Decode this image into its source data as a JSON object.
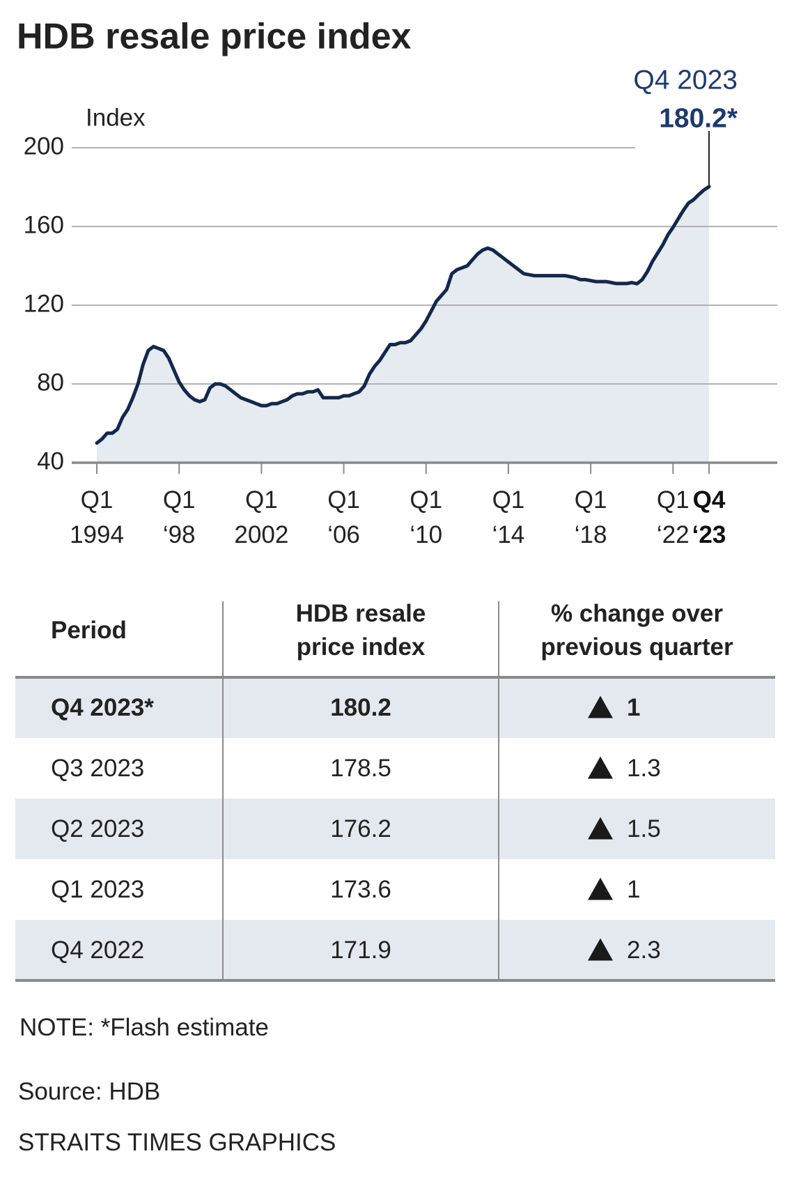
{
  "title": "HDB resale price index",
  "chart_data": {
    "type": "line",
    "y_label": "Index",
    "categories": [
      "Q1\n1994",
      null,
      null,
      null,
      null,
      null,
      null,
      null,
      null,
      null,
      null,
      null,
      null,
      null,
      null,
      null,
      "Q1\n‘98",
      null,
      null,
      null,
      null,
      null,
      null,
      null,
      null,
      null,
      null,
      null,
      null,
      null,
      null,
      null,
      "Q1\n2002",
      null,
      null,
      null,
      null,
      null,
      null,
      null,
      null,
      null,
      null,
      null,
      null,
      null,
      null,
      null,
      "Q1\n‘06",
      null,
      null,
      null,
      null,
      null,
      null,
      null,
      null,
      null,
      null,
      null,
      null,
      null,
      null,
      null,
      "Q1\n‘10",
      null,
      null,
      null,
      null,
      null,
      null,
      null,
      null,
      null,
      null,
      null,
      null,
      null,
      null,
      null,
      "Q1\n‘14",
      null,
      null,
      null,
      null,
      null,
      null,
      null,
      null,
      null,
      null,
      null,
      null,
      null,
      null,
      null,
      "Q1\n‘18",
      null,
      null,
      null,
      null,
      null,
      null,
      null,
      null,
      null,
      null,
      null,
      null,
      null,
      null,
      null,
      "Q1\n‘22",
      null,
      null,
      null,
      null,
      null,
      null,
      "Q4\n‘23"
    ],
    "series": [
      {
        "name": "HDB resale price index",
        "color": "#14284b",
        "values": [
          50,
          52,
          55,
          55,
          57,
          63,
          67,
          73,
          80,
          90,
          97,
          99,
          98,
          97,
          93,
          87,
          81,
          77,
          74,
          72,
          71,
          72,
          78,
          80,
          80,
          79,
          77,
          75,
          73,
          72,
          71,
          70,
          69,
          69,
          70,
          70,
          71,
          72,
          74,
          75,
          75,
          76,
          76,
          77,
          73,
          73,
          73,
          73,
          74,
          74,
          75,
          76,
          79,
          85,
          89,
          92,
          96,
          100,
          100,
          101,
          101,
          102,
          105,
          108,
          112,
          117,
          122,
          125,
          128,
          136,
          138,
          139,
          140,
          143,
          146,
          148,
          149,
          148,
          146,
          144,
          142,
          140,
          138,
          136,
          135.5,
          135,
          135,
          135,
          135,
          135,
          135,
          135,
          134.5,
          134,
          133,
          133,
          132.5,
          132,
          132,
          132,
          131.5,
          131,
          131,
          131,
          131.5,
          130.9,
          133,
          137,
          142.2,
          146.4,
          150.6,
          155.7,
          159.5,
          163.9,
          168.1,
          171.9,
          173.6,
          176.2,
          178.5,
          180.2
        ]
      }
    ],
    "ylim": [
      40,
      200
    ],
    "yticks": [
      40,
      80,
      120,
      160,
      200
    ],
    "grid": true,
    "area_color": "#e6ebf1",
    "annotations": [
      "Q4 2023",
      "180.2*"
    ]
  },
  "table": {
    "header": [
      "Period",
      "HDB resale\nprice index",
      "% change over\nprevious quarter"
    ],
    "rows": [
      [
        "Q4 2023*",
        "180.2",
        "1"
      ],
      [
        "Q3 2023",
        "178.5",
        "1.3"
      ],
      [
        "Q2 2023",
        "176.2",
        "1.5"
      ],
      [
        "Q1 2023",
        "173.6",
        "1"
      ],
      [
        "Q4 2022",
        "171.9",
        "2.3"
      ]
    ]
  },
  "note": "NOTE: *Flash estimate",
  "source": "Source: HDB",
  "credit": "STRAITS TIMES GRAPHICS"
}
